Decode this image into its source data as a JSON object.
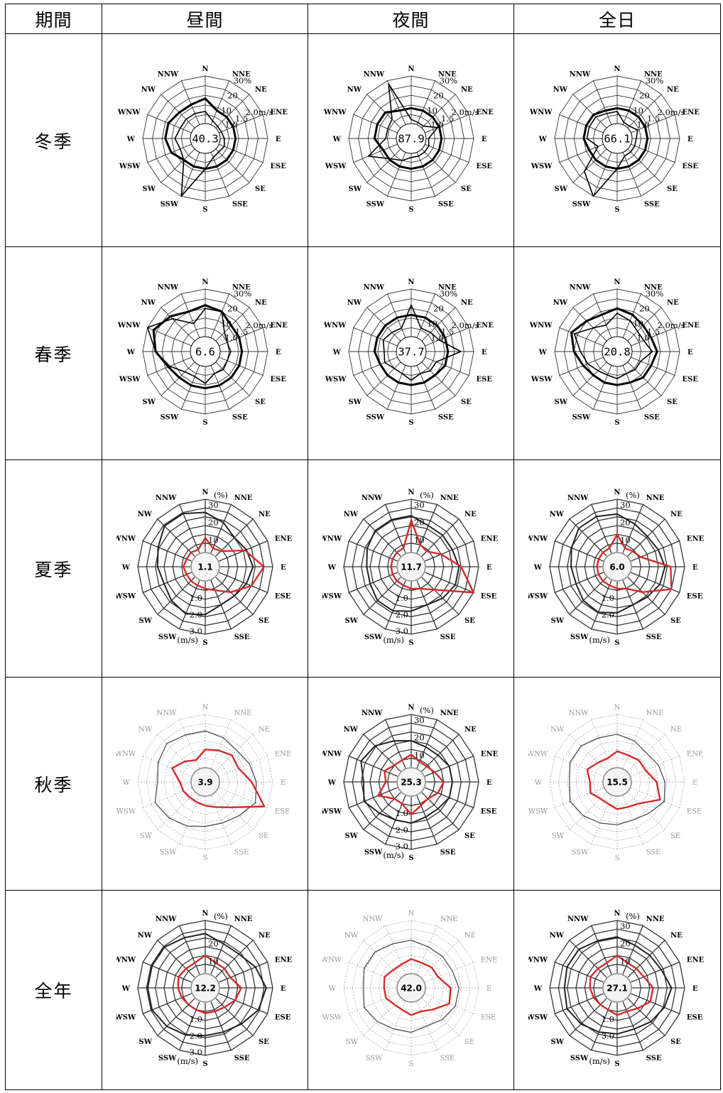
{
  "header": {
    "period": "期間",
    "day": "昼間",
    "night": "夜間",
    "allday": "全日"
  },
  "rows": [
    {
      "label": "冬季"
    },
    {
      "label": "春季"
    },
    {
      "label": "夏季"
    },
    {
      "label": "秋季"
    },
    {
      "label": "全年"
    }
  ],
  "chart_data": {
    "type": "radar",
    "directions": [
      "N",
      "NNE",
      "NE",
      "ENE",
      "E",
      "ESE",
      "SE",
      "SSE",
      "S",
      "SSW",
      "SW",
      "WSW",
      "W",
      "WNW",
      "NW",
      "NNW"
    ],
    "charts": [
      {
        "row": "冬季",
        "period": "昼間",
        "calm": "40.3",
        "style": "a",
        "pct_labels": [
          "10",
          "20",
          "30%"
        ],
        "ws_labels": [
          "1.0",
          "1.5",
          "2.0m/s"
        ],
        "frequency": [
          8,
          3,
          2,
          2,
          3,
          4,
          3,
          4,
          10,
          30,
          10,
          8,
          10,
          8,
          8,
          8
        ],
        "speed": [
          1.3,
          1.0,
          1.0,
          1.0,
          1.0,
          1.0,
          1.0,
          1.0,
          1.0,
          1.0,
          1.0,
          1.2,
          1.3,
          1.3,
          1.2,
          1.2
        ]
      },
      {
        "row": "冬季",
        "period": "夜間",
        "calm": "87.9",
        "style": "a",
        "pct_labels": [
          "10",
          "20",
          "30%"
        ],
        "ws_labels": [
          "1.0",
          "1.5",
          "2.0m/s"
        ],
        "frequency": [
          3,
          2,
          2,
          9,
          2,
          3,
          3,
          3,
          3,
          6,
          9,
          20,
          7,
          7,
          8,
          28
        ],
        "speed": [
          1.0,
          1.0,
          1.0,
          1.0,
          1.0,
          1.0,
          1.0,
          1.0,
          1.0,
          1.0,
          1.0,
          1.0,
          1.2,
          1.2,
          1.2,
          1.0
        ]
      },
      {
        "row": "冬季",
        "period": "全日",
        "calm": "66.1",
        "style": "a",
        "pct_labels": [
          "10",
          "20",
          "30%"
        ],
        "ws_labels": [
          "1.0",
          "1.5",
          "2.0m/s"
        ],
        "frequency": [
          8,
          2,
          2,
          5,
          3,
          3,
          3,
          3,
          10,
          30,
          20,
          4,
          10,
          10,
          10,
          8
        ],
        "speed": [
          1.0,
          1.0,
          1.0,
          1.0,
          1.0,
          1.0,
          1.0,
          1.0,
          1.0,
          1.0,
          1.0,
          1.0,
          1.1,
          1.1,
          1.1,
          1.0
        ]
      },
      {
        "row": "春季",
        "period": "昼間",
        "calm": "6.6",
        "style": "a",
        "pct_labels": [
          "10",
          "20",
          "30%"
        ],
        "ws_labels": [
          "1.0",
          "1.5",
          "2.0m/s"
        ],
        "frequency": [
          18,
          18,
          8,
          6,
          7,
          6,
          7,
          6,
          11,
          8,
          9,
          15,
          22,
          30,
          20,
          10
        ],
        "speed": [
          1.5,
          1.4,
          1.2,
          1.2,
          1.2,
          1.2,
          1.2,
          1.2,
          1.2,
          1.2,
          1.2,
          1.3,
          1.6,
          1.8,
          1.6,
          1.4
        ]
      },
      {
        "row": "春季",
        "period": "夜間",
        "calm": "37.7",
        "style": "a",
        "pct_labels": [
          "10",
          "20",
          "30%"
        ],
        "ws_labels": [
          "1.0",
          "1.5",
          "2.0m/s"
        ],
        "frequency": [
          20,
          7,
          8,
          10,
          22,
          8,
          8,
          6,
          9,
          6,
          6,
          9,
          8,
          10,
          8,
          7
        ],
        "speed": [
          1.2,
          1.2,
          1.2,
          1.2,
          1.2,
          1.2,
          1.1,
          1.1,
          1.1,
          1.1,
          1.1,
          1.1,
          1.2,
          1.2,
          1.2,
          1.2
        ]
      },
      {
        "row": "春季",
        "period": "全日",
        "calm": "20.8",
        "style": "a",
        "pct_labels": [
          "10",
          "20",
          "30%"
        ],
        "ws_labels": [
          "1.0",
          "1.5",
          "2.0m/s"
        ],
        "frequency": [
          15,
          12,
          9,
          9,
          13,
          7,
          7,
          6,
          8,
          7,
          8,
          11,
          14,
          20,
          12,
          9
        ],
        "speed": [
          1.4,
          1.3,
          1.2,
          1.2,
          1.3,
          1.2,
          1.2,
          1.1,
          1.1,
          1.1,
          1.1,
          1.2,
          1.4,
          1.6,
          1.4,
          1.3
        ]
      },
      {
        "row": "夏季",
        "period": "昼間",
        "calm": "1.1",
        "style": "b",
        "pct_labels": [
          "10",
          "20",
          "30"
        ],
        "ws_labels": [
          "1.0",
          "2.0",
          "3.0"
        ],
        "frequency": [
          8,
          3,
          4,
          16,
          25,
          20,
          12,
          6,
          4,
          3,
          3,
          3,
          4,
          3,
          3,
          2
        ],
        "speed": [
          2.4,
          2.0,
          1.6,
          1.8,
          2.0,
          1.8,
          1.6,
          1.6,
          2.0,
          2.2,
          2.0,
          1.8,
          2.0,
          2.2,
          2.6,
          2.6
        ]
      },
      {
        "row": "夏季",
        "period": "夜間",
        "calm": "11.7",
        "style": "b",
        "pct_labels": [
          "10",
          "20",
          "30"
        ],
        "ws_labels": [
          "1.0",
          "2.0",
          "3.0"
        ],
        "frequency": [
          18,
          5,
          4,
          10,
          20,
          32,
          10,
          5,
          4,
          3,
          3,
          3,
          3,
          3,
          3,
          3
        ],
        "speed": [
          2.2,
          1.8,
          1.8,
          1.8,
          2.0,
          2.0,
          1.8,
          1.6,
          1.8,
          2.0,
          2.0,
          1.8,
          1.8,
          2.0,
          2.2,
          2.2
        ]
      },
      {
        "row": "夏季",
        "period": "全日",
        "calm": "6.0",
        "style": "b",
        "pct_labels": [
          "10",
          "20",
          "30"
        ],
        "ws_labels": [
          "1.0",
          "2.0"
        ],
        "frequency": [
          10,
          3,
          4,
          6,
          22,
          25,
          12,
          5,
          4,
          3,
          3,
          3,
          3,
          3,
          3,
          3
        ],
        "speed": [
          2.3,
          1.9,
          1.7,
          1.8,
          2.0,
          1.9,
          1.7,
          1.6,
          1.9,
          2.1,
          2.0,
          1.8,
          1.9,
          2.1,
          2.4,
          2.4
        ]
      },
      {
        "row": "秋季",
        "period": "昼間",
        "calm": "3.9",
        "style": "c",
        "faint": true,
        "frequency": [
          10,
          11,
          13,
          12,
          18,
          28,
          12,
          7,
          5,
          4,
          4,
          5,
          6,
          12,
          8,
          5
        ],
        "speed": [
          2.2,
          2.0,
          1.8,
          2.0,
          2.2,
          2.4,
          2.0,
          1.8,
          1.8,
          2.0,
          2.2,
          2.4,
          2.0,
          2.2,
          2.4,
          2.2
        ]
      },
      {
        "row": "秋季",
        "period": "夜間",
        "calm": "25.3",
        "style": "b",
        "pct_labels": [
          "10",
          "20",
          "30"
        ],
        "ws_labels": [
          "1.0",
          "2.0",
          "3.0"
        ],
        "frequency": [
          7,
          4,
          4,
          6,
          10,
          8,
          5,
          6,
          10,
          5,
          5,
          12,
          6,
          8,
          5,
          5
        ],
        "speed": [
          1.6,
          1.4,
          1.4,
          1.6,
          1.6,
          1.6,
          1.4,
          1.4,
          1.6,
          1.6,
          1.8,
          2.2,
          2.0,
          2.4,
          2.2,
          1.8
        ]
      },
      {
        "row": "秋季",
        "period": "全日",
        "calm": "15.5",
        "style": "c",
        "faint": true,
        "frequency": [
          9,
          8,
          9,
          9,
          14,
          18,
          9,
          7,
          7,
          5,
          5,
          8,
          7,
          10,
          7,
          6
        ],
        "speed": [
          2.0,
          1.8,
          1.6,
          1.8,
          2.0,
          2.2,
          1.8,
          1.6,
          1.7,
          1.8,
          2.0,
          2.2,
          2.0,
          2.2,
          2.2,
          2.0
        ]
      },
      {
        "row": "全年",
        "period": "昼間",
        "calm": "12.2",
        "style": "b",
        "pct_labels": [
          "10",
          "20"
        ],
        "ws_labels": [
          "1.0",
          "2.0",
          "3.0"
        ],
        "frequency": [
          10,
          7,
          7,
          7,
          12,
          10,
          7,
          6,
          6,
          5,
          5,
          6,
          7,
          8,
          7,
          7
        ],
        "speed": [
          2.4,
          2.0,
          2.0,
          2.4,
          2.8,
          2.6,
          2.2,
          2.0,
          2.0,
          2.2,
          2.4,
          2.6,
          2.6,
          2.6,
          2.6,
          2.4
        ]
      },
      {
        "row": "全年",
        "period": "夜間",
        "calm": "42.0",
        "style": "c",
        "faint": true,
        "frequency": [
          8,
          7,
          8,
          8,
          14,
          15,
          9,
          6,
          7,
          5,
          5,
          7,
          7,
          8,
          6,
          6
        ],
        "speed": [
          2.0,
          1.8,
          1.8,
          1.8,
          2.0,
          2.0,
          1.8,
          1.6,
          1.8,
          1.8,
          2.0,
          2.2,
          2.0,
          2.2,
          2.2,
          2.0
        ]
      },
      {
        "row": "全年",
        "period": "全日",
        "calm": "27.1",
        "style": "b",
        "pct_labels": [
          "10",
          "20",
          "30"
        ],
        "ws_labels": [
          "1.0",
          "3.0"
        ],
        "frequency": [
          10,
          7,
          7,
          8,
          12,
          12,
          8,
          6,
          7,
          5,
          5,
          6,
          7,
          8,
          7,
          7
        ],
        "speed": [
          2.2,
          1.9,
          1.9,
          2.0,
          2.4,
          2.2,
          2.0,
          1.8,
          1.9,
          2.0,
          2.2,
          2.4,
          2.3,
          2.4,
          2.4,
          2.2
        ]
      }
    ]
  },
  "colors": {
    "frequency_line": "#d42a2a",
    "speed_line": "#222222",
    "grid": "#333333"
  },
  "labels": {
    "pct_unit": "(%)",
    "ws_unit": "(m/s)"
  }
}
